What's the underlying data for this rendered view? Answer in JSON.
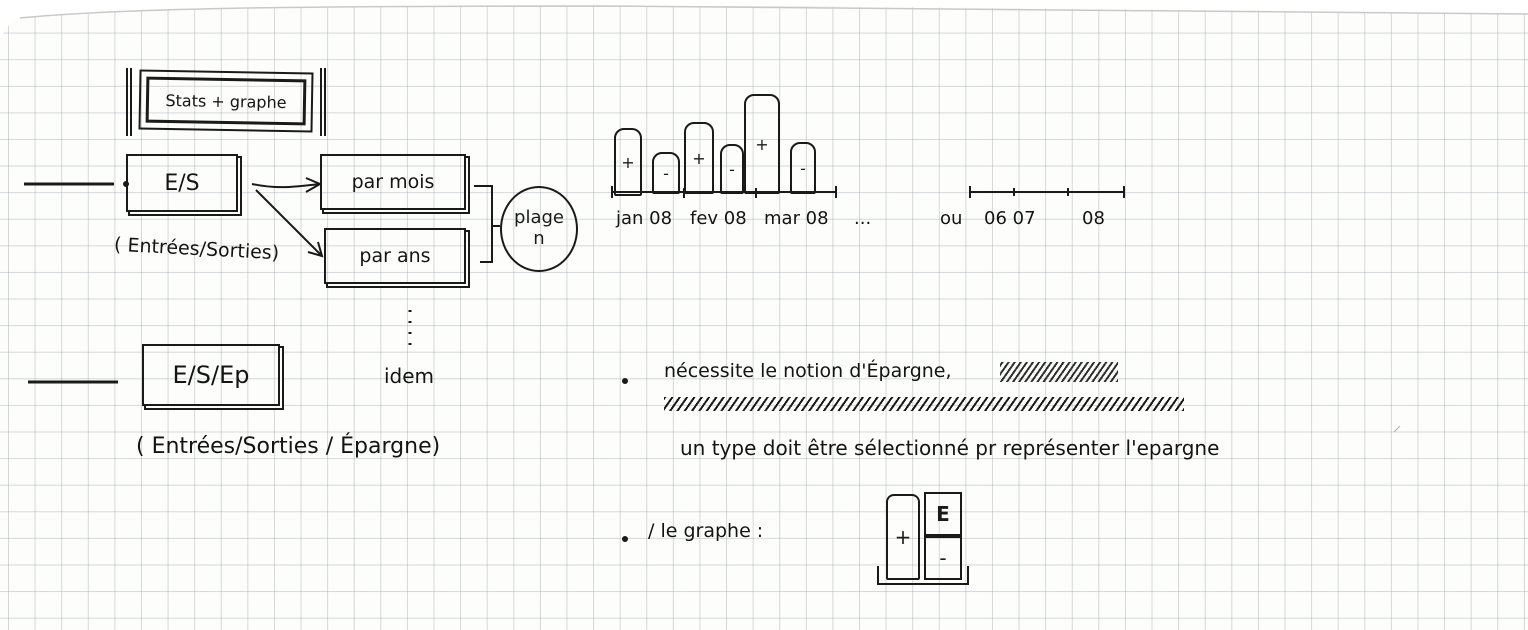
{
  "title": "Stats + graphe",
  "left": {
    "es_label": "E/S",
    "es_subtitle": "( Entrées/Sorties)",
    "par_mois_label": "par mois",
    "par_ans_label": "par ans",
    "plage_label": "plage",
    "plage_n": "n",
    "idem_label": "idem",
    "esp_label": "E/S/Ep",
    "esp_subtitle": "( Entrées/Sorties / Épargne)"
  },
  "sketch_chart": {
    "bar_labels": [
      "+",
      "-",
      "+",
      "-",
      "+",
      "-"
    ],
    "month_ticks": [
      "jan 08",
      "fev 08",
      "mar 08",
      "..."
    ],
    "alt_label": "ou",
    "year_ticks": [
      "06",
      "07",
      "08"
    ]
  },
  "notes": {
    "line1": "nécessite le notion d'Épargne,",
    "line1_struck": "",
    "line2": "un type doit être sélectionné pr représenter l'epargne",
    "line3": "/ le graphe :"
  },
  "legend": {
    "plus": "+",
    "epargne": "E",
    "minus": "-"
  }
}
